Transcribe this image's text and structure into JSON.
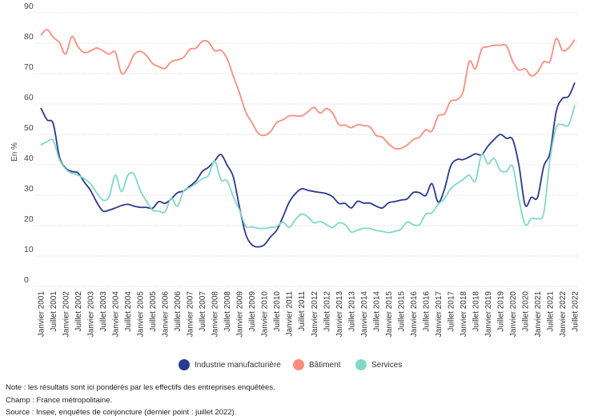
{
  "chart_data": {
    "type": "line",
    "title": "",
    "xlabel": "",
    "ylabel": "En %",
    "ylim": [
      0,
      90
    ],
    "yticks": [
      0,
      10,
      20,
      30,
      40,
      50,
      60,
      70,
      80,
      90
    ],
    "grid": true,
    "legend_position": "bottom",
    "xticks": [
      "Janvier 2001",
      "Juillet 2001",
      "Janvier 2002",
      "Juillet 2002",
      "Janvier 2003",
      "Juillet 2003",
      "Janvier 2004",
      "Juillet 2004",
      "Janvier 2005",
      "Juillet 2005",
      "Janvier 2006",
      "Juillet 2006",
      "Janvier 2007",
      "Juillet 2007",
      "Janvier 2008",
      "Juillet 2008",
      "Janvier 2009",
      "Juillet 2009",
      "Janvier 2010",
      "Juillet 2010",
      "Janvier 2011",
      "Juillet 2011",
      "Janvier 2012",
      "Juillet 2012",
      "Janvier 2013",
      "Juillet 2013",
      "Janvier 2014",
      "Juillet 2014",
      "Janvier 2015",
      "Juillet 2015",
      "Janvier 2016",
      "Juillet 2016",
      "Janvier 2017",
      "Juillet 2017",
      "Janvier 2018",
      "Juillet 2018",
      "Janvier 2019",
      "Juillet 2019",
      "Janvier 2020",
      "Juillet 2020",
      "Janvier 2021",
      "Juillet 2021",
      "Janvier 2022",
      "Juillet 2022"
    ],
    "x": [
      "2001-01",
      "2001-04",
      "2001-07",
      "2001-10",
      "2002-01",
      "2002-04",
      "2002-07",
      "2002-10",
      "2003-01",
      "2003-04",
      "2003-07",
      "2003-10",
      "2004-01",
      "2004-04",
      "2004-07",
      "2004-10",
      "2005-01",
      "2005-04",
      "2005-07",
      "2005-10",
      "2006-01",
      "2006-04",
      "2006-07",
      "2006-10",
      "2007-01",
      "2007-04",
      "2007-07",
      "2007-10",
      "2008-01",
      "2008-04",
      "2008-07",
      "2008-10",
      "2009-01",
      "2009-04",
      "2009-07",
      "2009-10",
      "2010-01",
      "2010-04",
      "2010-07",
      "2010-10",
      "2011-01",
      "2011-04",
      "2011-07",
      "2011-10",
      "2012-01",
      "2012-04",
      "2012-07",
      "2012-10",
      "2013-01",
      "2013-04",
      "2013-07",
      "2013-10",
      "2014-01",
      "2014-04",
      "2014-07",
      "2014-10",
      "2015-01",
      "2015-04",
      "2015-07",
      "2015-10",
      "2016-01",
      "2016-04",
      "2016-07",
      "2016-10",
      "2017-01",
      "2017-04",
      "2017-07",
      "2017-10",
      "2018-01",
      "2018-04",
      "2018-07",
      "2018-10",
      "2019-01",
      "2019-04",
      "2019-07",
      "2019-10",
      "2020-01",
      "2020-04",
      "2020-07",
      "2020-10",
      "2021-01",
      "2021-04",
      "2021-07",
      "2021-10",
      "2022-01",
      "2022-04",
      "2022-07"
    ],
    "series": [
      {
        "name": "Industrie manufacturière",
        "color": "#2b3990",
        "values": [
          58.7,
          54.8,
          53.5,
          42.6,
          38.9,
          37.8,
          37.3,
          34.3,
          31.6,
          27.7,
          24.8,
          25.1,
          25.8,
          26.6,
          27.0,
          26.4,
          26.0,
          26.0,
          25.7,
          27.9,
          27.3,
          28.8,
          30.8,
          31.4,
          33.0,
          34.7,
          37.8,
          39.2,
          41.3,
          43.4,
          39.9,
          36.0,
          26.0,
          17.2,
          13.7,
          13.0,
          13.7,
          16.3,
          18.5,
          22.9,
          27.7,
          30.5,
          32.1,
          31.6,
          31.2,
          30.9,
          30.5,
          29.5,
          27.3,
          27.3,
          25.8,
          28.0,
          27.4,
          27.4,
          26.4,
          25.8,
          27.5,
          27.9,
          28.4,
          28.8,
          30.9,
          30.8,
          29.9,
          33.8,
          27.7,
          31.9,
          39.5,
          41.7,
          41.7,
          42.6,
          43.6,
          43.3,
          46.1,
          48.3,
          50.0,
          48.7,
          48.3,
          39.9,
          26.8,
          29.3,
          29.3,
          39.5,
          43.9,
          57.4,
          61.8,
          62.5,
          67.0
        ]
      },
      {
        "name": "Bâtiment",
        "color": "#fd8c7c",
        "values": [
          82.6,
          84.5,
          81.9,
          80.2,
          76.4,
          82.2,
          78.8,
          76.9,
          77.5,
          78.4,
          77.5,
          76.4,
          77.0,
          70.1,
          71.9,
          76.2,
          77.3,
          76.0,
          73.3,
          72.3,
          71.7,
          73.9,
          74.5,
          75.3,
          78.0,
          78.4,
          80.6,
          80.4,
          77.5,
          77.7,
          74.9,
          69.2,
          63.6,
          57.4,
          53.9,
          50.4,
          49.7,
          50.9,
          53.9,
          54.8,
          56.1,
          56.1,
          56.1,
          57.4,
          58.9,
          57.0,
          58.5,
          57.0,
          53.2,
          53.1,
          52.2,
          53.2,
          52.9,
          52.5,
          49.7,
          49.1,
          46.9,
          45.4,
          45.4,
          46.5,
          48.3,
          49.1,
          51.5,
          51.1,
          56.1,
          56.7,
          60.9,
          61.4,
          64.0,
          74.0,
          71.6,
          78.0,
          78.8,
          79.3,
          79.3,
          79.1,
          74.0,
          71.2,
          71.6,
          69.2,
          70.5,
          73.9,
          74.0,
          81.5,
          77.7,
          78.4,
          81.2
        ]
      },
      {
        "name": "Services",
        "color": "#7fd9c9",
        "values": [
          46.5,
          47.6,
          48.0,
          41.7,
          38.6,
          37.2,
          36.6,
          35.4,
          33.8,
          30.8,
          28.4,
          29.5,
          36.6,
          31.2,
          36.5,
          36.9,
          31.6,
          28.1,
          25.1,
          24.8,
          24.5,
          29.0,
          26.4,
          31.4,
          32.5,
          33.8,
          35.4,
          36.5,
          41.3,
          35.1,
          34.7,
          29.5,
          25.1,
          19.8,
          19.6,
          19.1,
          19.1,
          19.4,
          19.7,
          21.2,
          19.4,
          22.0,
          23.8,
          22.9,
          20.9,
          21.4,
          20.3,
          19.4,
          20.9,
          20.3,
          17.9,
          18.5,
          19.1,
          19.0,
          18.4,
          18.1,
          17.7,
          18.1,
          18.8,
          21.2,
          20.3,
          20.3,
          23.8,
          24.2,
          27.0,
          28.8,
          32.1,
          33.8,
          35.1,
          36.6,
          34.7,
          43.4,
          40.3,
          42.1,
          38.2,
          37.8,
          39.5,
          28.6,
          20.3,
          22.3,
          22.3,
          24.2,
          41.7,
          52.2,
          53.2,
          53.1,
          59.6
        ]
      }
    ]
  },
  "notes": {
    "note": "Note : les résultats sont ici pondérés par les effectifs des entreprises enquêtées.",
    "champ": "Champ : France métropolitaine.",
    "source": "Source : Insee, enquêtes de conjoncture (dernier point : juillet 2022)."
  }
}
